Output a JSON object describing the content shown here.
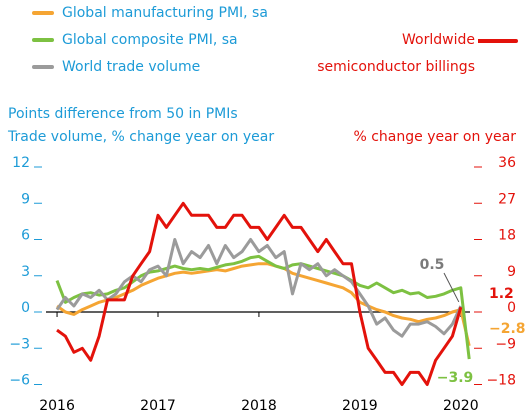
{
  "chart_data": {
    "type": "line",
    "left_axis_title": "Points difference from 50 in PMIs",
    "left_axis_subtitle": "Trade volume, % change year on year",
    "right_axis_title": "% change year on year",
    "x": [
      2016,
      2016.083,
      2016.167,
      2016.25,
      2016.333,
      2016.417,
      2016.5,
      2016.583,
      2016.667,
      2016.75,
      2016.833,
      2016.917,
      2017,
      2017.083,
      2017.167,
      2017.25,
      2017.333,
      2017.417,
      2017.5,
      2017.583,
      2017.667,
      2017.75,
      2017.833,
      2017.917,
      2018,
      2018.083,
      2018.167,
      2018.25,
      2018.333,
      2018.417,
      2018.5,
      2018.583,
      2018.667,
      2018.75,
      2018.833,
      2018.917,
      2019,
      2019.083,
      2019.167,
      2019.25,
      2019.333,
      2019.417,
      2019.5,
      2019.583,
      2019.667,
      2019.75,
      2019.833,
      2019.917,
      2020,
      2020.083
    ],
    "xlim": [
      2015.95,
      2020.2
    ],
    "xticks": [
      2016,
      2017,
      2018,
      2019,
      2020
    ],
    "ylim": [
      -6,
      12
    ],
    "yticks": [
      {
        "value": 12,
        "label": "12"
      },
      9,
      6,
      3,
      0,
      {
        "value": -3,
        "label": "−3"
      },
      {
        "value": -6,
        "label": "−6"
      }
    ],
    "y2lim": [
      -18,
      36
    ],
    "y2ticks": [
      36,
      27,
      18,
      9,
      0,
      {
        "value": -9,
        "label": "−9"
      },
      {
        "value": -18,
        "label": "−18"
      }
    ],
    "series": [
      {
        "name": "Global manufacturing PMI, sa",
        "color": "#f5a533",
        "values": [
          0.5,
          0.0,
          -0.2,
          0.2,
          0.5,
          0.8,
          1.0,
          1.2,
          1.5,
          1.8,
          2.2,
          2.5,
          2.8,
          3.0,
          3.2,
          3.3,
          3.2,
          3.3,
          3.4,
          3.5,
          3.4,
          3.6,
          3.8,
          3.9,
          4.0,
          4.0,
          3.8,
          3.6,
          3.2,
          3.0,
          2.8,
          2.6,
          2.4,
          2.2,
          2.0,
          1.6,
          0.8,
          0.5,
          0.2,
          0.0,
          -0.3,
          -0.5,
          -0.6,
          -0.8,
          -0.6,
          -0.5,
          -0.3,
          0.0,
          0.2,
          -2.8
        ],
        "value_labels": [
          null,
          null,
          null,
          null,
          null,
          null,
          null,
          null,
          null,
          null,
          null,
          null,
          null,
          null,
          null,
          null,
          null,
          null,
          null,
          null,
          null,
          null,
          null,
          null,
          null,
          null,
          null,
          null,
          null,
          null,
          null,
          null,
          null,
          null,
          null,
          null,
          null,
          null,
          null,
          null,
          null,
          null,
          null,
          null,
          null,
          null,
          null,
          null,
          null,
          "−2.8"
        ]
      },
      {
        "name": "Global composite PMI, sa",
        "color": "#7dc142",
        "values": [
          2.6,
          0.8,
          1.2,
          1.5,
          1.6,
          1.4,
          1.5,
          1.8,
          2.0,
          2.5,
          3.0,
          3.3,
          3.4,
          3.6,
          3.8,
          3.6,
          3.5,
          3.6,
          3.5,
          3.7,
          3.9,
          4.0,
          4.2,
          4.5,
          4.6,
          4.2,
          3.8,
          3.6,
          3.9,
          4.0,
          3.8,
          3.6,
          3.4,
          3.2,
          3.0,
          2.6,
          2.2,
          2.0,
          2.4,
          2.0,
          1.6,
          1.8,
          1.5,
          1.6,
          1.2,
          1.3,
          1.5,
          1.8,
          2.0,
          -3.9
        ],
        "value_labels": [
          null,
          null,
          null,
          null,
          null,
          null,
          null,
          null,
          null,
          null,
          null,
          null,
          null,
          null,
          null,
          null,
          null,
          null,
          null,
          null,
          null,
          null,
          null,
          null,
          null,
          null,
          null,
          null,
          null,
          null,
          null,
          null,
          null,
          null,
          null,
          null,
          null,
          null,
          null,
          null,
          null,
          null,
          null,
          null,
          null,
          null,
          null,
          null,
          null,
          "−3.9"
        ]
      },
      {
        "name": "World trade volume",
        "color": "#9b9b9b",
        "values": [
          0.2,
          1.2,
          0.5,
          1.5,
          1.2,
          1.8,
          1.0,
          1.5,
          2.5,
          3.0,
          2.5,
          3.5,
          3.8,
          3.0,
          6.0,
          4.0,
          5.0,
          4.5,
          5.5,
          4.0,
          5.5,
          4.5,
          5.0,
          6.0,
          5.0,
          5.5,
          4.5,
          5.0,
          1.5,
          4.0,
          3.5,
          4.0,
          3.0,
          3.5,
          3.0,
          2.5,
          1.5,
          0.5,
          -1.0,
          -0.5,
          -1.5,
          -2.0,
          -1.0,
          -1.0,
          -0.8,
          -1.2,
          -1.8,
          -1.0,
          0.5,
          null
        ]
      },
      {
        "name": "Worldwide semiconductor billings",
        "color": "#e3120b",
        "axis": "y2",
        "values": [
          -4.5,
          -6,
          -10,
          -9,
          -12,
          -6,
          3,
          3,
          3,
          9,
          12,
          15,
          24,
          21,
          24,
          27,
          24,
          24,
          24,
          21,
          21,
          24,
          24,
          21,
          21,
          18,
          21,
          24,
          21,
          21,
          18,
          15,
          18,
          15,
          12,
          12,
          0,
          -9,
          -12,
          -15,
          -15,
          -18,
          -15,
          -15,
          -18,
          -12,
          -9,
          -6,
          1.2,
          null
        ]
      }
    ]
  }
}
